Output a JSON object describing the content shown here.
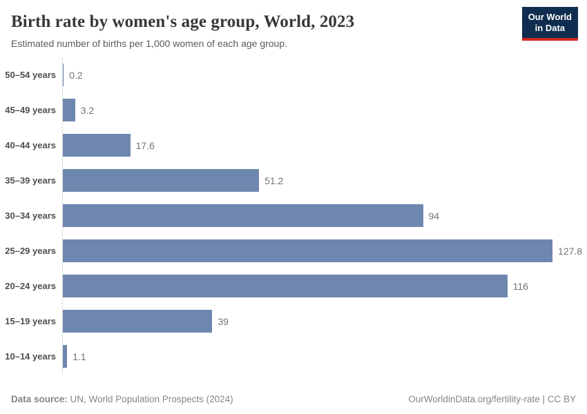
{
  "header": {
    "title": "Birth rate by women's age group, World, 2023",
    "subtitle": "Estimated number of births per 1,000 women of each age group."
  },
  "logo": {
    "line1": "Our World",
    "line2": "in Data",
    "bg_color": "#0f2e4f",
    "accent_color": "#cf2722"
  },
  "chart_data": {
    "type": "bar",
    "orientation": "horizontal",
    "title": "Birth rate by women's age group, World, 2023",
    "subtitle": "Estimated number of births per 1,000 women of each age group.",
    "categories": [
      "50–54 years",
      "45–49 years",
      "40–44 years",
      "35–39 years",
      "30–34 years",
      "25–29 years",
      "20–24 years",
      "15–19 years",
      "10–14 years"
    ],
    "values": [
      0.2,
      3.2,
      17.6,
      51.2,
      94,
      127.8,
      116,
      39,
      1.1
    ],
    "value_labels": [
      "0.2",
      "3.2",
      "17.6",
      "51.2",
      "94",
      "127.8",
      "116",
      "39",
      "1.1"
    ],
    "xlabel": "",
    "ylabel": "",
    "xlim": [
      0,
      135
    ],
    "bar_color": "#6e87af",
    "axis_line_color": "#dedede",
    "grid": false,
    "legend": "none"
  },
  "footer": {
    "datasource_label": "Data source:",
    "datasource_text": "UN, World Population Prospects (2024)",
    "note": "OurWorldinData.org/fertility-rate | CC BY"
  }
}
